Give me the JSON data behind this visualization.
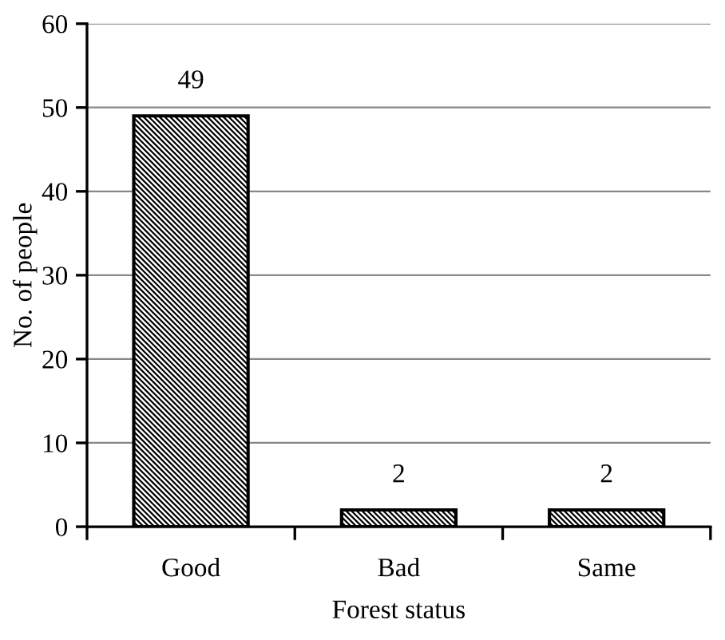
{
  "chart_data": {
    "type": "bar",
    "xlabel": "Forest status",
    "ylabel": "No. of people",
    "categories": [
      "Good",
      "Bad",
      "Same"
    ],
    "values": [
      49,
      2,
      2
    ],
    "color": "#000000",
    "ylim": [
      0,
      60
    ],
    "yticks": [
      0,
      10,
      20,
      30,
      40,
      50,
      60
    ],
    "grid": "y",
    "data_labels": true
  }
}
